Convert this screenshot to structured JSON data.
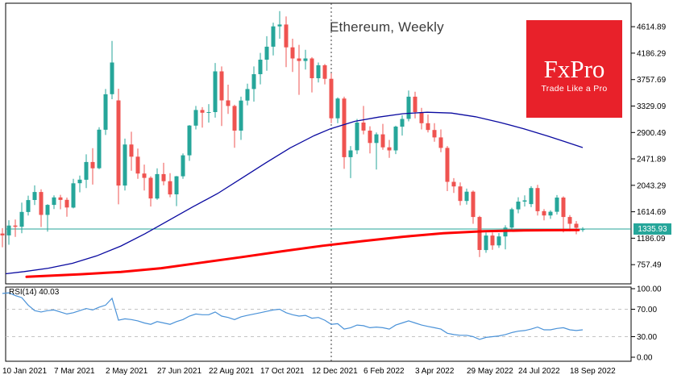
{
  "title": "Ethereum, Weekly",
  "logo": {
    "brand": "FxPro",
    "tagline": "Trade Like a Pro",
    "bg_color": "#e8212a",
    "text_color": "#ffffff"
  },
  "price_axis": {
    "labels": [
      "4614.89",
      "4186.29",
      "3757.69",
      "3329.09",
      "2900.49",
      "2471.89",
      "2043.29",
      "1614.69",
      "1186.09",
      "757.49"
    ],
    "values": [
      4614.89,
      4186.29,
      3757.69,
      3329.09,
      2900.49,
      2471.89,
      2043.29,
      1614.69,
      1186.09,
      757.49
    ],
    "current_price_label": "1335.93"
  },
  "time_axis": {
    "labels": [
      "10 Jan 2021",
      "7 Mar 2021",
      "2 May 2021",
      "27 Jun 2021",
      "22 Aug 2021",
      "17 Oct 2021",
      "12 Dec 2021",
      "6 Feb 2022",
      "3 Apr 2022",
      "29 May 2022",
      "24 Jul 2022",
      "18 Sep 2022"
    ]
  },
  "rsi_panel": {
    "label": "RSI(14) 40.03",
    "level_labels": [
      "100.00",
      "70.00",
      "30.00",
      "0.00"
    ],
    "level_values": [
      100,
      70,
      30,
      0
    ],
    "dashed_levels": [
      70,
      30
    ]
  },
  "chart_data": {
    "type": "candlestick",
    "symbol": "Ethereum",
    "timeframe": "Weekly",
    "title": "Ethereum, Weekly",
    "ylim": [
      450,
      4995
    ],
    "grid": false,
    "current_price": 1335.93,
    "year_separator_index": 51,
    "colors": {
      "up": "#26a69a",
      "down": "#ef5350",
      "ma_slow_blue": "#0a0aa0",
      "ma_long_red": "#fe0000",
      "current_price_line": "#26a69a",
      "rsi_line": "#4a92d8",
      "rsi_grid": "#c4c4c4",
      "border": "#000000",
      "separator": "#3c3c3c"
    },
    "candles": [
      [
        "2021-01-10",
        1262,
        1350,
        1040,
        1232
      ],
      [
        "2021-01-17",
        1232,
        1478,
        1080,
        1392
      ],
      [
        "2021-01-24",
        1392,
        1488,
        1207,
        1372
      ],
      [
        "2021-01-31",
        1372,
        1763,
        1266,
        1612
      ],
      [
        "2021-02-07",
        1612,
        1877,
        1555,
        1805
      ],
      [
        "2021-02-14",
        1805,
        2042,
        1725,
        1935
      ],
      [
        "2021-02-21",
        1935,
        1980,
        1368,
        1564
      ],
      [
        "2021-02-28",
        1564,
        1736,
        1293,
        1726
      ],
      [
        "2021-03-07",
        1726,
        1880,
        1660,
        1848
      ],
      [
        "2021-03-14",
        1848,
        1890,
        1655,
        1808
      ],
      [
        "2021-03-21",
        1808,
        1845,
        1536,
        1684
      ],
      [
        "2021-03-28",
        1684,
        2150,
        1670,
        2077
      ],
      [
        "2021-04-04",
        2077,
        2200,
        1930,
        2135
      ],
      [
        "2021-04-11",
        2135,
        2546,
        2000,
        2422
      ],
      [
        "2021-04-18",
        2422,
        2646,
        2055,
        2320
      ],
      [
        "2021-04-25",
        2320,
        2985,
        2305,
        2945
      ],
      [
        "2021-05-02",
        2945,
        3605,
        2860,
        3520
      ],
      [
        "2021-05-09",
        3520,
        4384,
        3440,
        4034
      ],
      [
        "2021-05-16",
        3420,
        3610,
        1735,
        2040
      ],
      [
        "2021-05-23",
        2040,
        2800,
        1960,
        2705
      ],
      [
        "2021-05-30",
        2705,
        2912,
        2280,
        2508
      ],
      [
        "2021-06-06",
        2508,
        2640,
        2150,
        2235
      ],
      [
        "2021-06-13",
        2235,
        2380,
        1960,
        2165
      ],
      [
        "2021-06-20",
        2165,
        2190,
        1700,
        1830
      ],
      [
        "2021-06-27",
        1830,
        2320,
        1810,
        2226
      ],
      [
        "2021-07-04",
        2226,
        2408,
        2045,
        2111
      ],
      [
        "2021-07-11",
        2111,
        2240,
        1850,
        1897
      ],
      [
        "2021-07-18",
        1897,
        2195,
        1706,
        2190
      ],
      [
        "2021-07-25",
        2190,
        2560,
        2150,
        2530
      ],
      [
        "2021-08-01",
        2530,
        3020,
        2440,
        3012
      ],
      [
        "2021-08-08",
        3012,
        3330,
        2950,
        3265
      ],
      [
        "2021-08-15",
        3265,
        3310,
        2980,
        3220
      ],
      [
        "2021-08-22",
        3220,
        3360,
        3060,
        3230
      ],
      [
        "2021-08-29",
        3230,
        4027,
        3140,
        3890
      ],
      [
        "2021-09-05",
        3890,
        3970,
        3005,
        3420
      ],
      [
        "2021-09-12",
        3420,
        3675,
        3200,
        3330
      ],
      [
        "2021-09-19",
        3330,
        3350,
        2651,
        2930
      ],
      [
        "2021-09-26",
        2930,
        3480,
        2780,
        3418
      ],
      [
        "2021-10-03",
        3418,
        3690,
        3340,
        3605
      ],
      [
        "2021-10-10",
        3605,
        3970,
        3400,
        3845
      ],
      [
        "2021-10-17",
        3845,
        4190,
        3680,
        4080
      ],
      [
        "2021-10-24",
        4080,
        4460,
        3900,
        4290
      ],
      [
        "2021-10-31",
        4290,
        4680,
        4150,
        4620
      ],
      [
        "2021-11-07",
        4620,
        4868,
        4420,
        4650
      ],
      [
        "2021-11-14",
        4650,
        4780,
        3960,
        4280
      ],
      [
        "2021-11-21",
        4280,
        4420,
        3880,
        4100
      ],
      [
        "2021-11-28",
        4100,
        4320,
        3510,
        4060
      ],
      [
        "2021-12-05",
        4060,
        4240,
        3920,
        4100
      ],
      [
        "2021-12-12",
        4100,
        4120,
        3550,
        3780
      ],
      [
        "2021-12-19",
        3780,
        4035,
        3710,
        3990
      ],
      [
        "2021-12-26",
        3990,
        4010,
        3680,
        3770
      ],
      [
        "2022-01-02",
        3770,
        3860,
        3050,
        3130
      ],
      [
        "2022-01-09",
        3130,
        3470,
        3050,
        3450
      ],
      [
        "2022-01-16",
        3450,
        3480,
        2310,
        2500
      ],
      [
        "2022-01-23",
        2500,
        2680,
        2160,
        2610
      ],
      [
        "2022-01-30",
        2610,
        3120,
        2550,
        3060
      ],
      [
        "2022-02-06",
        3060,
        3330,
        2870,
        2930
      ],
      [
        "2022-02-13",
        2930,
        3000,
        2560,
        2730
      ],
      [
        "2022-02-20",
        2730,
        2900,
        2300,
        2870
      ],
      [
        "2022-02-27",
        2870,
        3040,
        2620,
        2660
      ],
      [
        "2022-03-06",
        2660,
        2780,
        2490,
        2610
      ],
      [
        "2022-03-13",
        2610,
        3010,
        2550,
        2995
      ],
      [
        "2022-03-20",
        2995,
        3180,
        2850,
        3120
      ],
      [
        "2022-03-27",
        3120,
        3580,
        3080,
        3480
      ],
      [
        "2022-04-03",
        3480,
        3560,
        3130,
        3230
      ],
      [
        "2022-04-10",
        3230,
        3300,
        2950,
        3050
      ],
      [
        "2022-04-17",
        3050,
        3190,
        2900,
        2940
      ],
      [
        "2022-04-24",
        2940,
        3050,
        2750,
        2820
      ],
      [
        "2022-05-01",
        2820,
        2950,
        2580,
        2650
      ],
      [
        "2022-05-08",
        2650,
        2680,
        1950,
        2100
      ],
      [
        "2022-05-15",
        2100,
        2160,
        1920,
        2025
      ],
      [
        "2022-05-22",
        2025,
        2090,
        1720,
        1790
      ],
      [
        "2022-05-29",
        1790,
        1990,
        1730,
        1940
      ],
      [
        "2022-06-05",
        1940,
        1960,
        1420,
        1530
      ],
      [
        "2022-06-12",
        1530,
        1550,
        880,
        995
      ],
      [
        "2022-06-19",
        995,
        1280,
        950,
        1230
      ],
      [
        "2022-06-26",
        1230,
        1280,
        1000,
        1070
      ],
      [
        "2022-07-03",
        1070,
        1270,
        1030,
        1215
      ],
      [
        "2022-07-10",
        1215,
        1395,
        1006,
        1358
      ],
      [
        "2022-07-17",
        1358,
        1680,
        1310,
        1655
      ],
      [
        "2022-07-24",
        1655,
        1850,
        1590,
        1780
      ],
      [
        "2022-07-31",
        1780,
        1880,
        1700,
        1800
      ],
      [
        "2022-08-07",
        1740,
        2030,
        1690,
        2000
      ],
      [
        "2022-08-14",
        2000,
        2050,
        1555,
        1625
      ],
      [
        "2022-08-21",
        1625,
        1660,
        1475,
        1555
      ],
      [
        "2022-08-28",
        1555,
        1640,
        1500,
        1615
      ],
      [
        "2022-09-04",
        1615,
        1885,
        1570,
        1845
      ],
      [
        "2022-09-11",
        1845,
        1865,
        1280,
        1530
      ],
      [
        "2022-09-18",
        1530,
        1560,
        1300,
        1420
      ],
      [
        "2022-09-25",
        1420,
        1465,
        1250,
        1355
      ],
      [
        "2022-10-02",
        1320,
        1365,
        1290,
        1336
      ]
    ],
    "ma_blue_points": [
      [
        7,
        610
      ],
      [
        30,
        645
      ],
      [
        60,
        700
      ],
      [
        90,
        780
      ],
      [
        120,
        900
      ],
      [
        150,
        1060
      ],
      [
        180,
        1260
      ],
      [
        210,
        1480
      ],
      [
        240,
        1700
      ],
      [
        270,
        1910
      ],
      [
        300,
        2160
      ],
      [
        330,
        2410
      ],
      [
        360,
        2650
      ],
      [
        390,
        2850
      ],
      [
        410,
        2960
      ],
      [
        440,
        3080
      ],
      [
        470,
        3150
      ],
      [
        500,
        3205
      ],
      [
        530,
        3228
      ],
      [
        560,
        3215
      ],
      [
        590,
        3155
      ],
      [
        620,
        3065
      ],
      [
        650,
        2960
      ],
      [
        680,
        2840
      ],
      [
        700,
        2755
      ],
      [
        723,
        2655
      ]
    ],
    "ma_red_points": [
      [
        33,
        560
      ],
      [
        100,
        602
      ],
      [
        150,
        640
      ],
      [
        200,
        700
      ],
      [
        250,
        790
      ],
      [
        300,
        880
      ],
      [
        350,
        975
      ],
      [
        400,
        1063
      ],
      [
        450,
        1140
      ],
      [
        500,
        1210
      ],
      [
        550,
        1268
      ],
      [
        600,
        1300
      ],
      [
        650,
        1312
      ],
      [
        680,
        1316
      ],
      [
        718,
        1320
      ]
    ],
    "rsi": {
      "period": 14,
      "current": 40.03,
      "values": [
        93,
        94,
        90,
        87,
        76,
        68,
        66,
        68,
        69,
        66,
        63,
        65,
        68,
        71,
        69,
        73,
        76,
        86,
        54,
        56,
        55,
        53,
        50,
        48,
        52,
        50,
        48,
        52,
        55,
        60,
        63,
        62,
        62,
        66,
        60,
        58,
        55,
        59,
        61,
        63,
        65,
        67,
        69,
        70,
        65,
        62,
        60,
        61,
        57,
        58,
        54,
        48,
        49,
        41,
        43,
        47,
        46,
        43,
        44,
        43,
        41,
        47,
        50,
        53,
        50,
        47,
        45,
        43,
        41,
        35,
        33,
        32,
        32,
        30,
        26,
        29,
        30,
        31,
        33,
        36,
        38,
        39,
        41,
        44,
        40,
        40,
        42,
        43,
        40,
        39,
        40.03
      ]
    }
  }
}
